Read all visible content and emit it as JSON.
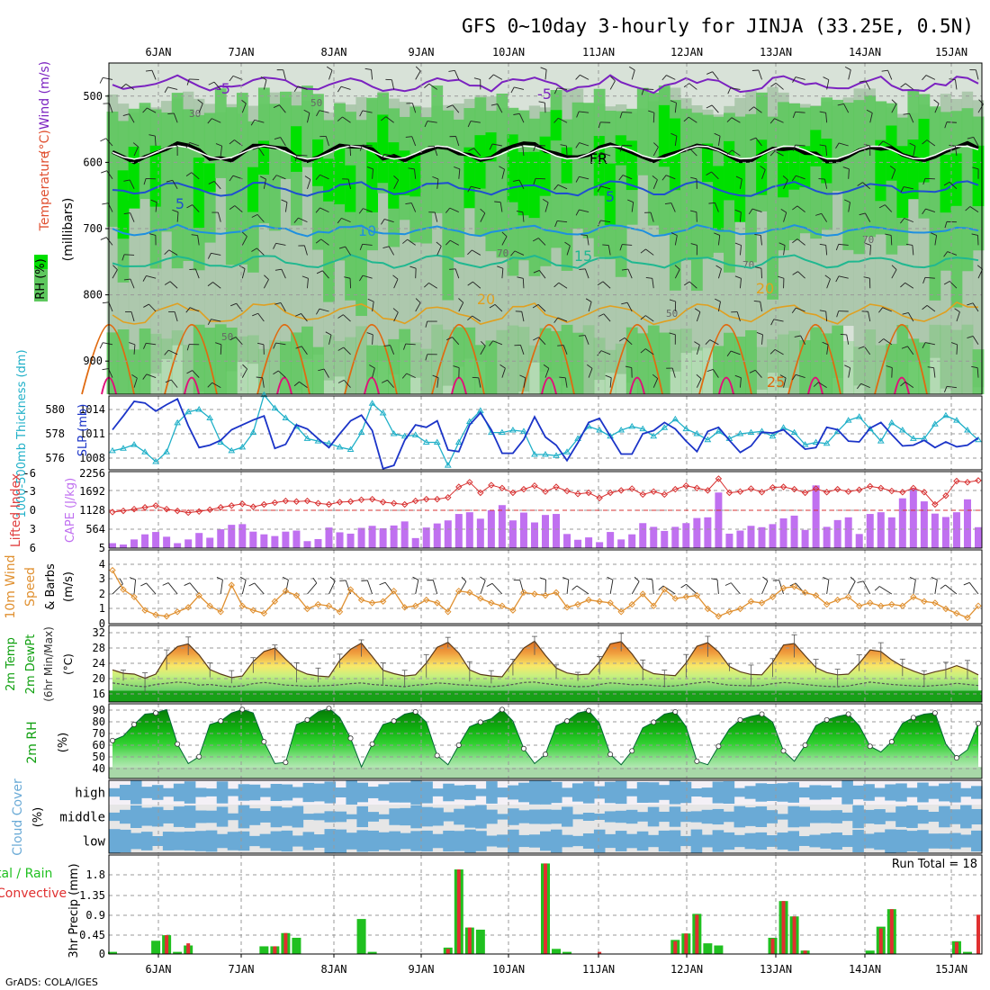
{
  "title": "GFS 0~10day 3-hourly for JINJA (33.25E, 0.5N)",
  "footer": "GrADS: COLA/IGES",
  "colors": {
    "rh_light": "#d8e2d8",
    "rh_mid": "#9fbf9f",
    "rh_green": "#5ec85e",
    "rh_bright": "#00e000",
    "temp_neg": "#7b22c0",
    "temp_fr": "#000000",
    "temp_5": "#1f4fd0",
    "temp_10": "#1e90e0",
    "temp_15": "#20b890",
    "temp_20": "#e0a020",
    "temp_25": "#e06a10",
    "temp_30": "#e0107a",
    "slp": "#1b34c8",
    "thickness": "#20b0c8",
    "lifted": "#d83030",
    "cape": "#c070f0",
    "wind": "#e09030",
    "temp_fill": "#f0a030",
    "dew": "#555555",
    "rh2m": "#10a010",
    "cloud": "#6aaad6",
    "cloud_bg": "#e6e6e6",
    "precip_total": "#20c020",
    "precip_conv": "#e03030"
  },
  "chart_data": [
    {
      "type": "heatmap",
      "panel": "upper-air",
      "ylabel_parts": [
        "RH (%)",
        "Temperature",
        " (°C)",
        "Wind (m/s)"
      ],
      "yunit_label": "(millibars)",
      "x_categories": [
        "6JAN",
        "7JAN",
        "8JAN",
        "9JAN",
        "10JAN",
        "11JAN",
        "12JAN",
        "13JAN",
        "14JAN",
        "15JAN"
      ],
      "y_ticks": [
        500,
        600,
        700,
        800,
        900
      ],
      "ylim": [
        950,
        450
      ],
      "isotherm_labels": [
        "-5",
        "-5",
        "FR",
        "5",
        "5",
        "10",
        "15",
        "20",
        "20",
        "25"
      ],
      "rh_labels": [
        "30",
        "50",
        "70",
        "70",
        "50",
        "50",
        "70"
      ],
      "rh_levels": [
        30,
        50,
        70,
        90
      ]
    },
    {
      "type": "line",
      "panel": "slp-thickness",
      "ylabel_left": "1000-500mb Thickness (dm)",
      "ylabel_right": "SLP (mb)",
      "left_ticks": [
        "580",
        "578",
        "576"
      ],
      "right_ticks": [
        "1014",
        "1011",
        "1008"
      ],
      "series": [
        {
          "name": "SLP (mb)",
          "unit": "mb",
          "values": [
            1011.5,
            1013.2,
            1015,
            1014.8,
            1013.8,
            1014.6,
            1015.3,
            1012,
            1009.3,
            1009.6,
            1010.2,
            1011.5,
            1012.1,
            1012.7,
            1013.2,
            1009.2,
            1009.7,
            1012.1,
            1011.6,
            1010.4,
            1009.3,
            1011,
            1012.6,
            1013.3,
            1011.4,
            1006.7,
            1007.1,
            1010.2,
            1012.1,
            1011.8,
            1012.6,
            1009,
            1008.8,
            1012.1,
            1013.6,
            1011.5,
            1008.6,
            1008.6,
            1010.3,
            1013.1,
            1010.6,
            1009.6,
            1007.7,
            1009.9,
            1012.4,
            1012.9,
            1010.7,
            1008.5,
            1008.5,
            1011,
            1011.4,
            1012.4,
            1011.6,
            1010.1,
            1008.8,
            1011.3,
            1011.8,
            1010.2,
            1008.7,
            1009.5,
            1011.2,
            1011.1,
            1011.5,
            1010.3,
            1009.1,
            1009.3,
            1011.8,
            1011.5,
            1010.1,
            1010,
            1011.7,
            1012.4,
            1010.9,
            1009.5,
            1009.6,
            1010.2,
            1009.3,
            1010,
            1009.4,
            1009.6,
            1010.5
          ]
        },
        {
          "name": "1000-500mb Thickness (dm)",
          "unit": "dm",
          "values": [
            576.6,
            576.8,
            577.1,
            576.5,
            575.7,
            576.5,
            578.9,
            579.8,
            580,
            579.3,
            577.3,
            576.6,
            576.9,
            578.1,
            581.2,
            580.1,
            579.3,
            578.6,
            577.6,
            577.4,
            577.2,
            576.9,
            576.7,
            578.1,
            580.5,
            579.7,
            578,
            577.8,
            577.9,
            577.3,
            577.3,
            575.4,
            577.3,
            579,
            579.9,
            578.1,
            578.1,
            578.3,
            578.2,
            576.3,
            576.3,
            576.2,
            576.5,
            577.6,
            578.6,
            578.3,
            577.8,
            578.3,
            578.6,
            578.4,
            577.8,
            578.5,
            579.2,
            578.4,
            578,
            577.5,
            578.2,
            577.6,
            578,
            578.1,
            578.2,
            577.8,
            578.5,
            578.1,
            577.1,
            577.3,
            577.2,
            578.2,
            579.1,
            579.4,
            578.4,
            577.4,
            578.9,
            578.3,
            577.6,
            577.6,
            578.8,
            579.5,
            579.1,
            578.3,
            577.5
          ]
        }
      ]
    },
    {
      "type": "bar",
      "panel": "cape-lifted",
      "ylabel_left": "Lifted Index",
      "ylabel_right": "CAPE (J/kg)",
      "left_ticks": [
        "-6",
        "-3",
        "0",
        "3",
        "6"
      ],
      "right_ticks": [
        "2256",
        "1692",
        "1128",
        "564",
        "5"
      ],
      "series": [
        {
          "name": "CAPE (J/kg)",
          "unit": "J/kg",
          "values": [
            150,
            110,
            260,
            410,
            480,
            340,
            150,
            260,
            450,
            310,
            560,
            690,
            710,
            490,
            410,
            360,
            490,
            520,
            210,
            270,
            610,
            470,
            430,
            600,
            660,
            590,
            670,
            790,
            300,
            610,
            730,
            820,
            1010,
            1060,
            870,
            1120,
            1270,
            820,
            1050,
            760,
            980,
            1010,
            420,
            250,
            320,
            180,
            480,
            260,
            410,
            740,
            630,
            510,
            630,
            740,
            890,
            910,
            1640,
            430,
            520,
            660,
            620,
            710,
            880,
            960,
            540,
            1850,
            630,
            830,
            910,
            420,
            1010,
            1060,
            910,
            1470,
            1750,
            1380,
            1020,
            920,
            1060,
            1440,
            620
          ]
        },
        {
          "name": "Lifted Index",
          "unit": "",
          "values": [
            0.3,
            0.1,
            -0.2,
            -0.5,
            -0.8,
            -0.2,
            0.1,
            0.4,
            0.2,
            -0.1,
            -0.5,
            -0.8,
            -1.1,
            -0.6,
            -1.0,
            -1.3,
            -1.6,
            -1.5,
            -1.6,
            -1.2,
            -1.0,
            -1.4,
            -1.5,
            -1.8,
            -1.9,
            -1.4,
            -1.2,
            -1.0,
            -1.6,
            -1.9,
            -1.9,
            -2.2,
            -4.0,
            -4.8,
            -3.0,
            -4.3,
            -3.8,
            -3.0,
            -3.6,
            -4.2,
            -3.2,
            -4.0,
            -3.3,
            -2.8,
            -3.0,
            -2.1,
            -3.0,
            -3.4,
            -3.7,
            -2.7,
            -3.2,
            -2.7,
            -3.6,
            -4.2,
            -3.8,
            -3.4,
            -5.4,
            -3.0,
            -3.2,
            -3.7,
            -3.1,
            -3.9,
            -4.0,
            -3.6,
            -3.0,
            -3.7,
            -3.1,
            -3.6,
            -3.2,
            -3.5,
            -4.1,
            -3.8,
            -3.3,
            -3.1,
            -3.8,
            -3.1,
            -1.0,
            -2.5,
            -5.0,
            -4.8,
            -5.1
          ]
        }
      ]
    },
    {
      "type": "line",
      "panel": "wind10m",
      "ylabel": "10m Wind Speed (m/s) & Barbs",
      "ylabel_parts": [
        "10m Wind",
        "Speed",
        "& Barbs",
        "(m/s)"
      ],
      "y_ticks": [
        "4",
        "3",
        "2",
        "1",
        "0"
      ],
      "ylim": [
        0,
        4.5
      ],
      "series": [
        {
          "name": "10m Wind Speed",
          "unit": "m/s",
          "values": [
            3.6,
            2.3,
            1.8,
            0.9,
            0.6,
            0.5,
            0.8,
            1.1,
            1.9,
            1.2,
            0.8,
            2.6,
            1.2,
            0.9,
            0.7,
            1.5,
            2.2,
            1.9,
            1.0,
            1.3,
            1.2,
            0.8,
            2.3,
            1.6,
            1.4,
            1.5,
            2.2,
            1.1,
            1.2,
            1.6,
            1.4,
            0.8,
            2.2,
            2.1,
            1.7,
            1.4,
            1.2,
            0.9,
            2.1,
            2.0,
            1.9,
            2.1,
            1.1,
            1.3,
            1.6,
            1.5,
            1.4,
            0.8,
            1.3,
            2.0,
            1.2,
            2.3,
            1.7,
            1.8,
            1.9,
            1.0,
            0.5,
            0.8,
            1.0,
            1.5,
            1.4,
            1.8,
            2.4,
            2.5,
            2.1,
            1.9,
            1.3,
            1.6,
            1.8,
            1.2,
            1.4,
            1.2,
            1.3,
            1.2,
            1.8,
            1.5,
            1.4,
            1.0,
            0.7,
            0.4,
            1.2
          ]
        }
      ]
    },
    {
      "type": "area",
      "panel": "temp2m",
      "ylabel_parts": [
        "2m Temp",
        "2m DewPt",
        "(6hr Min/Max)"
      ],
      "yunit_label": "(°C)",
      "y_ticks": [
        "32",
        "28",
        "24",
        "20",
        "16"
      ],
      "ylim": [
        13,
        33
      ],
      "series": [
        {
          "name": "2m Temp",
          "unit": "°C",
          "values": [
            21.4,
            20.5,
            20.3,
            19.2,
            20.3,
            24.9,
            27.5,
            28.2,
            25.3,
            21.5,
            20.3,
            19.4,
            19.8,
            23.6,
            26.2,
            27.1,
            24.2,
            21.5,
            20.3,
            19.8,
            19.6,
            23.9,
            26.8,
            28.4,
            24.9,
            21.3,
            20.4,
            19.8,
            20.1,
            23.2,
            27.3,
            28.6,
            25.8,
            21.4,
            20.2,
            19.8,
            19.6,
            23.4,
            27.1,
            28.9,
            25.2,
            21.9,
            20.6,
            20.1,
            20.3,
            23.5,
            28.2,
            28.8,
            25.6,
            21.7,
            20.4,
            20.1,
            19.9,
            23.2,
            27.6,
            28.5,
            26.1,
            22.3,
            20.9,
            20.2,
            20.1,
            23.4,
            27.9,
            28.3,
            25.1,
            22.0,
            20.7,
            20.1,
            20.3,
            23.1,
            26.6,
            26.2,
            24.0,
            22.3,
            21.1,
            20.1,
            20.9,
            21.5,
            22.5,
            21.5,
            20.1
          ]
        },
        {
          "name": "2m DewPt",
          "unit": "°C",
          "values": [
            18.0,
            17.6,
            17.2,
            17.0,
            17.6,
            17.9,
            18.2,
            18.0,
            17.4,
            17.6,
            17.2,
            17.0,
            17.2,
            17.8,
            18.1,
            17.8,
            17.4,
            17.3,
            17.1,
            17.2,
            17.3,
            17.5,
            17.8,
            18.0,
            17.6,
            17.4,
            17.2,
            17.0,
            17.4,
            17.6,
            18.0,
            17.8,
            17.5,
            17.4,
            17.2,
            17.0,
            17.2,
            17.6,
            18.1,
            18.2,
            17.8,
            17.5,
            17.2,
            17.0,
            17.1,
            17.6,
            18.0,
            17.8,
            17.5,
            17.6,
            17.3,
            17.1,
            17.2,
            17.6,
            18.0,
            18.3,
            17.8,
            17.4,
            17.3,
            17.2,
            17.3,
            17.8,
            18.1,
            17.9,
            17.6,
            17.3,
            17.1,
            17.0,
            17.2,
            17.7,
            18.2,
            17.9,
            17.6,
            17.4,
            17.2,
            17.1,
            17.3,
            17.5,
            17.9,
            17.6,
            17.3
          ]
        }
      ]
    },
    {
      "type": "area",
      "panel": "rh2m",
      "ylabel": "2m RH",
      "yunit_label": "(%)",
      "y_ticks": [
        "90",
        "80",
        "70",
        "60",
        "50",
        "40"
      ],
      "ylim": [
        30,
        95
      ],
      "series": [
        {
          "name": "2m RH",
          "unit": "%",
          "values": [
            63,
            67,
            77,
            86,
            87,
            90,
            60,
            43,
            49,
            77,
            80,
            87,
            90,
            87,
            62,
            43,
            44,
            77,
            81,
            88,
            91,
            83,
            65,
            40,
            60,
            77,
            80,
            86,
            88,
            79,
            50,
            42,
            59,
            75,
            79,
            82,
            90,
            80,
            56,
            43,
            51,
            76,
            80,
            87,
            89,
            78,
            51,
            42,
            54,
            74,
            79,
            86,
            88,
            75,
            45,
            42,
            58,
            73,
            81,
            84,
            86,
            79,
            54,
            45,
            59,
            76,
            81,
            84,
            86,
            76,
            58,
            53,
            62,
            78,
            83,
            86,
            87,
            60,
            48,
            55,
            78
          ]
        }
      ]
    },
    {
      "type": "bar",
      "panel": "cloud-cover",
      "ylabel": "Cloud Cover",
      "yunit_label": "(%)",
      "rows": [
        "high",
        "middle",
        "low"
      ]
    },
    {
      "type": "bar",
      "panel": "precip",
      "ylabel": "3hr Precip (mm)",
      "legend_left": [
        "tal / Rain",
        "Convective"
      ],
      "run_total_label": "Run Total = 18",
      "y_ticks": [
        "1.8",
        "1.35",
        "0.9",
        "0.45",
        "0"
      ],
      "ylim": [
        0,
        2.15
      ],
      "series": [
        {
          "name": "Total / Rain",
          "unit": "mm",
          "values": [
            0.05,
            0,
            0,
            0,
            0.31,
            0.44,
            0.05,
            0.2,
            0,
            0,
            0,
            0,
            0,
            0,
            0.18,
            0.18,
            0.49,
            0.38,
            0,
            0,
            0,
            0,
            0,
            0.82,
            0.05,
            0,
            0,
            0,
            0,
            0,
            0,
            0.15,
            1.98,
            0.62,
            0.57,
            0,
            0,
            0,
            0,
            0,
            2.12,
            0.12,
            0.05,
            0,
            0,
            0,
            0,
            0,
            0,
            0,
            0,
            0,
            0.33,
            0.48,
            0.94,
            0.25,
            0.2,
            0,
            0,
            0,
            0,
            0.38,
            1.24,
            0.88,
            0.08,
            0,
            0,
            0,
            0,
            0,
            0.08,
            0.64,
            1.05,
            0,
            0,
            0,
            0,
            0,
            0.3,
            0.05,
            0
          ]
        },
        {
          "name": "Convective",
          "unit": "mm",
          "values": [
            0,
            0,
            0,
            0,
            0,
            0.44,
            0,
            0.25,
            0,
            0,
            0,
            0,
            0,
            0,
            0,
            0.18,
            0.49,
            0,
            0,
            0,
            0,
            0,
            0,
            0,
            0,
            0,
            0,
            0,
            0,
            0,
            0,
            0.12,
            1.98,
            0.62,
            0,
            0,
            0,
            0,
            0,
            0,
            2.12,
            0,
            0,
            0,
            0,
            0.05,
            0,
            0,
            0,
            0,
            0,
            0,
            0.3,
            0.48,
            0.92,
            0,
            0,
            0,
            0,
            0,
            0,
            0.36,
            1.24,
            0.88,
            0.08,
            0,
            0,
            0,
            0,
            0,
            0,
            0.6,
            1.05,
            0,
            0,
            0,
            0,
            0,
            0.28,
            0,
            0.92
          ]
        }
      ]
    }
  ]
}
